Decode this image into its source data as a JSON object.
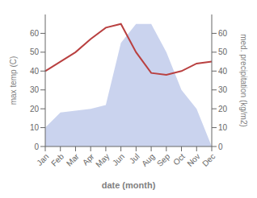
{
  "chart_data": {
    "type": "line",
    "xlabel": "date (month)",
    "ylabel": "max temp (C)",
    "y2label": "med. precipitation (kg/m2)",
    "categories": [
      "Jan",
      "Feb",
      "Mar",
      "Apr",
      "May",
      "Jun",
      "Jul",
      "Aug",
      "Sep",
      "Oct",
      "Nov",
      "Dec"
    ],
    "series": [
      {
        "type": "line",
        "color": "#b94040",
        "values": [
          40,
          45,
          50,
          57,
          63,
          65,
          50,
          39,
          38,
          40,
          44,
          45
        ]
      },
      {
        "type": "area",
        "color": "#b8c4e8",
        "axis": "y2",
        "values": [
          10,
          18,
          19,
          20,
          22,
          55,
          65,
          65,
          50,
          30,
          20,
          0
        ]
      }
    ],
    "ylim": [
      0,
      70
    ],
    "yticks": [
      0,
      10,
      20,
      30,
      40,
      50,
      60
    ],
    "y2lim": [
      0,
      70
    ],
    "y2ticks": [
      0,
      10,
      20,
      30,
      40,
      50,
      60
    ],
    "grid": false
  }
}
